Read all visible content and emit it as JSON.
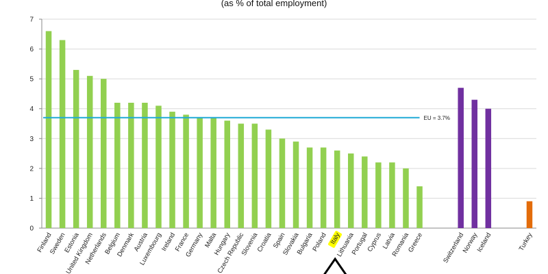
{
  "chart_data": {
    "type": "bar",
    "subtitle": "(as % of total employment)",
    "ylim": [
      0,
      7
    ],
    "yticks": [
      0,
      1,
      2,
      3,
      4,
      5,
      6,
      7
    ],
    "grid": true,
    "categories": [
      "Finland",
      "Sweden",
      "Estonia",
      "United Kingdom",
      "Netherlands",
      "Belgium",
      "Denmark",
      "Austria",
      "Luxembourg",
      "Ireland",
      "France",
      "Germany",
      "Malta",
      "Hungary",
      "Czech Republic",
      "Slovenia",
      "Croatia",
      "Spain",
      "Slovakia",
      "Bulgaria",
      "Poland",
      "Italy",
      "Lithuania",
      "Portugal",
      "Cyprus",
      "Latvia",
      "Romania",
      "Greece",
      "",
      "",
      "Switzerland",
      "Norway",
      "Iceland",
      "",
      "",
      "Turkey"
    ],
    "values": [
      6.6,
      6.3,
      5.3,
      5.1,
      5.0,
      4.2,
      4.2,
      4.2,
      4.1,
      3.9,
      3.8,
      3.7,
      3.7,
      3.6,
      3.5,
      3.5,
      3.3,
      3.0,
      2.9,
      2.7,
      2.7,
      2.6,
      2.5,
      2.4,
      2.2,
      2.2,
      2.0,
      1.4,
      null,
      null,
      4.7,
      4.3,
      4.0,
      null,
      null,
      0.9
    ],
    "bar_colors": [
      "#92d050",
      "#92d050",
      "#92d050",
      "#92d050",
      "#92d050",
      "#92d050",
      "#92d050",
      "#92d050",
      "#92d050",
      "#92d050",
      "#92d050",
      "#92d050",
      "#92d050",
      "#92d050",
      "#92d050",
      "#92d050",
      "#92d050",
      "#92d050",
      "#92d050",
      "#92d050",
      "#92d050",
      "#92d050",
      "#92d050",
      "#92d050",
      "#92d050",
      "#92d050",
      "#92d050",
      "#92d050",
      "",
      "",
      "#7030a0",
      "#7030a0",
      "#7030a0",
      "",
      "",
      "#e36c0a"
    ],
    "highlight_category": "Italy",
    "highlight_color": "#ffff00",
    "reference_line": {
      "value": 3.7,
      "label": "EU = 3.7%",
      "color": "#1fa9d6"
    }
  }
}
